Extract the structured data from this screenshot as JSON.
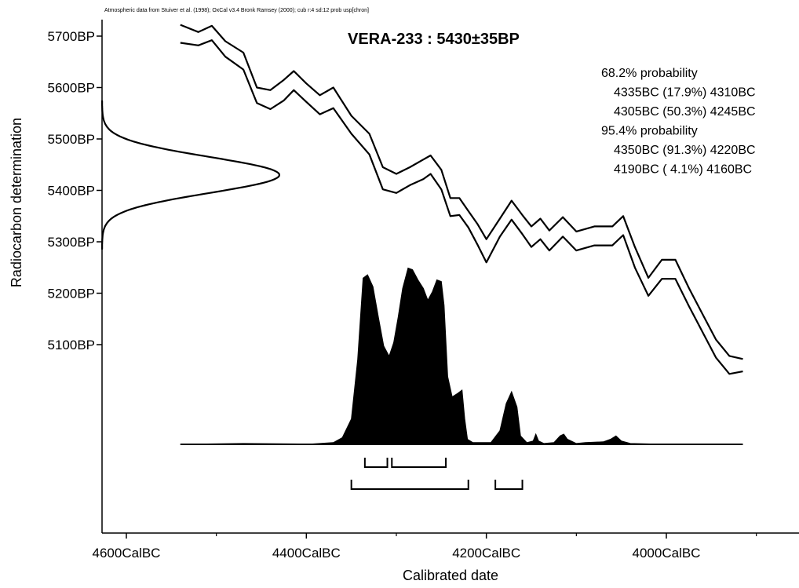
{
  "chart_data": {
    "type": "area",
    "source_note": "Atmospheric data from Stuiver et al. (1998); OxCal v3.4 Bronk Ramsey (2000); cub r:4 sd:12 prob usp[chron]",
    "title": "VERA-233 : 5430±35BP",
    "xlabel": "Calibrated date",
    "ylabel": "Radiocarbon determination",
    "xlim": [
      4620,
      3880
    ],
    "ylim": [
      4900,
      5730
    ],
    "x_ticks": [
      {
        "value": 4600,
        "label": "4600CalBC"
      },
      {
        "value": 4400,
        "label": "4400CalBC"
      },
      {
        "value": 4200,
        "label": "4200CalBC"
      },
      {
        "value": 4000,
        "label": "4000CalBC"
      }
    ],
    "y_ticks": [
      {
        "value": 5700,
        "label": "5700BP"
      },
      {
        "value": 5600,
        "label": "5600BP"
      },
      {
        "value": 5500,
        "label": "5500BP"
      },
      {
        "value": 5400,
        "label": "5400BP"
      },
      {
        "value": 5300,
        "label": "5300BP"
      },
      {
        "value": 5200,
        "label": "5200BP"
      },
      {
        "value": 5100,
        "label": "5100BP"
      }
    ],
    "measurement": {
      "mean_bp": 5430,
      "sigma_bp": 35
    },
    "calibration_curve": {
      "x": [
        4540,
        4520,
        4505,
        4490,
        4470,
        4455,
        4440,
        4425,
        4414,
        4400,
        4385,
        4370,
        4350,
        4330,
        4315,
        4300,
        4285,
        4270,
        4262,
        4250,
        4240,
        4230,
        4220,
        4210,
        4200,
        4185,
        4172,
        4160,
        4150,
        4140,
        4130,
        4115,
        4100,
        4080,
        4060,
        4048,
        4035,
        4020,
        4005,
        3990,
        3975,
        3960,
        3945,
        3930,
        3915
      ],
      "upper": [
        5722,
        5708,
        5720,
        5690,
        5668,
        5600,
        5595,
        5615,
        5632,
        5608,
        5585,
        5600,
        5545,
        5510,
        5445,
        5432,
        5445,
        5460,
        5468,
        5440,
        5385,
        5385,
        5360,
        5335,
        5305,
        5345,
        5380,
        5352,
        5330,
        5345,
        5322,
        5348,
        5320,
        5330,
        5330,
        5350,
        5290,
        5230,
        5265,
        5265,
        5210,
        5160,
        5110,
        5078,
        5072
      ],
      "lower": [
        5687,
        5682,
        5692,
        5660,
        5635,
        5570,
        5558,
        5575,
        5595,
        5572,
        5548,
        5560,
        5510,
        5470,
        5402,
        5395,
        5410,
        5422,
        5432,
        5402,
        5350,
        5352,
        5328,
        5295,
        5260,
        5310,
        5343,
        5315,
        5290,
        5305,
        5283,
        5310,
        5283,
        5293,
        5293,
        5313,
        5250,
        5195,
        5228,
        5228,
        5175,
        5125,
        5075,
        5043,
        5048
      ]
    },
    "posterior_distribution": {
      "x": [
        4540,
        4470,
        4395,
        4370,
        4360,
        4350,
        4343,
        4337,
        4332,
        4326,
        4320,
        4314,
        4308,
        4303,
        4298,
        4293,
        4287,
        4282,
        4276,
        4270,
        4265,
        4260,
        4255,
        4250,
        4247,
        4243,
        4238,
        4232,
        4227,
        4224,
        4221,
        4215,
        4195,
        4185,
        4178,
        4172,
        4166,
        4162,
        4155,
        4148,
        4145,
        4142,
        4136,
        4125,
        4118,
        4114,
        4110,
        4100,
        4090,
        4070,
        4062,
        4056,
        4050,
        4040,
        4000,
        3915
      ],
      "density": [
        0,
        0.005,
        0.002,
        0.01,
        0.04,
        0.15,
        0.5,
        0.98,
        1.0,
        0.93,
        0.75,
        0.58,
        0.52,
        0.6,
        0.75,
        0.92,
        1.04,
        1.03,
        0.97,
        0.92,
        0.85,
        0.9,
        0.97,
        0.96,
        0.82,
        0.4,
        0.28,
        0.3,
        0.32,
        0.15,
        0.03,
        0.01,
        0.01,
        0.08,
        0.24,
        0.31,
        0.22,
        0.05,
        0.01,
        0.02,
        0.06,
        0.02,
        0.005,
        0.01,
        0.05,
        0.06,
        0.03,
        0.005,
        0.01,
        0.015,
        0.03,
        0.05,
        0.02,
        0.005,
        0,
        0
      ]
    },
    "ranges": [
      {
        "level": "68.2%",
        "from": 4335,
        "to": 4310,
        "prob": "17.9%"
      },
      {
        "level": "68.2%",
        "from": 4305,
        "to": 4245,
        "prob": "50.3%"
      },
      {
        "level": "95.4%",
        "from": 4350,
        "to": 4220,
        "prob": "91.3%"
      },
      {
        "level": "95.4%",
        "from": 4190,
        "to": 4160,
        "prob": "4.1%"
      }
    ],
    "range_text": [
      "68.2% probability",
      "4335BC (17.9%) 4310BC",
      "4305BC (50.3%) 4245BC",
      "95.4% probability",
      "4350BC (91.3%) 4220BC",
      "4190BC ( 4.1%) 4160BC"
    ]
  }
}
